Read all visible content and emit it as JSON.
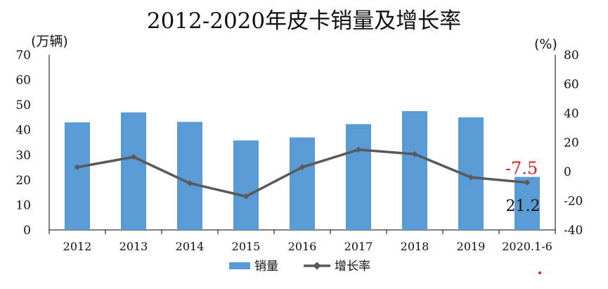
{
  "chart_data": {
    "type": "bar",
    "title": "2012-2020年皮卡销量及增长率",
    "y_left_unit": "(万辆)",
    "y_right_unit": "(%)",
    "categories": [
      "2012",
      "2013",
      "2014",
      "2015",
      "2016",
      "2017",
      "2018",
      "2019",
      "2020.1-6"
    ],
    "series": [
      {
        "name": "销量",
        "type": "bar",
        "axis": "left",
        "color": "#5b9bd5",
        "values": [
          43.0,
          47.0,
          43.2,
          35.8,
          37.0,
          42.3,
          47.5,
          45.0,
          21.2
        ]
      },
      {
        "name": "增长率",
        "type": "line",
        "axis": "right",
        "color": "#595959",
        "values": [
          3.0,
          10.0,
          -8.0,
          -17.0,
          3.0,
          15.0,
          12.0,
          -4.0,
          -7.5
        ]
      }
    ],
    "y_left": {
      "range": [
        0,
        70
      ],
      "ticks": [
        "0",
        "10",
        "20",
        "30",
        "40",
        "50",
        "60",
        "70"
      ]
    },
    "y_right": {
      "range": [
        -40,
        80
      ],
      "ticks": [
        "-40",
        "-20",
        "0",
        "20",
        "40",
        "60",
        "80"
      ]
    },
    "annotations": [
      {
        "text": "-7.5",
        "color": "#e02020",
        "category": "2020.1-6",
        "series": "增长率"
      },
      {
        "text": "21.2",
        "color": "#111111",
        "category": "2020.1-6",
        "series": "销量"
      }
    ],
    "legend": {
      "position": "bottom",
      "items": [
        "销量",
        "增长率"
      ]
    },
    "grid": false
  }
}
